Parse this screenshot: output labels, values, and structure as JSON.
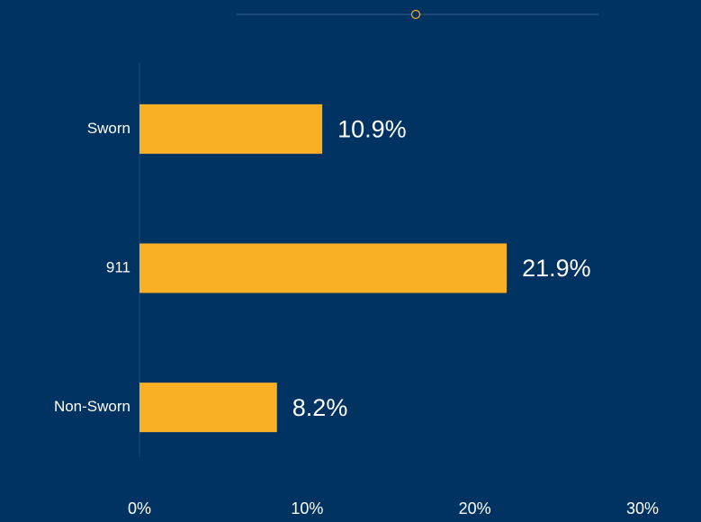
{
  "chart_data": {
    "type": "bar",
    "orientation": "horizontal",
    "categories": [
      "Sworn",
      "911",
      "Non-Sworn"
    ],
    "values": [
      10.9,
      21.9,
      8.2
    ],
    "value_labels": [
      "10.9%",
      "21.9%",
      "8.2%"
    ],
    "color": "#f9b123",
    "xlim": [
      0,
      30
    ],
    "xticks": [
      {
        "value": 0,
        "label": "0%"
      },
      {
        "value": 10,
        "label": "10%"
      },
      {
        "value": 20,
        "label": "20%"
      },
      {
        "value": 30,
        "label": "30%"
      }
    ],
    "grid": false
  }
}
